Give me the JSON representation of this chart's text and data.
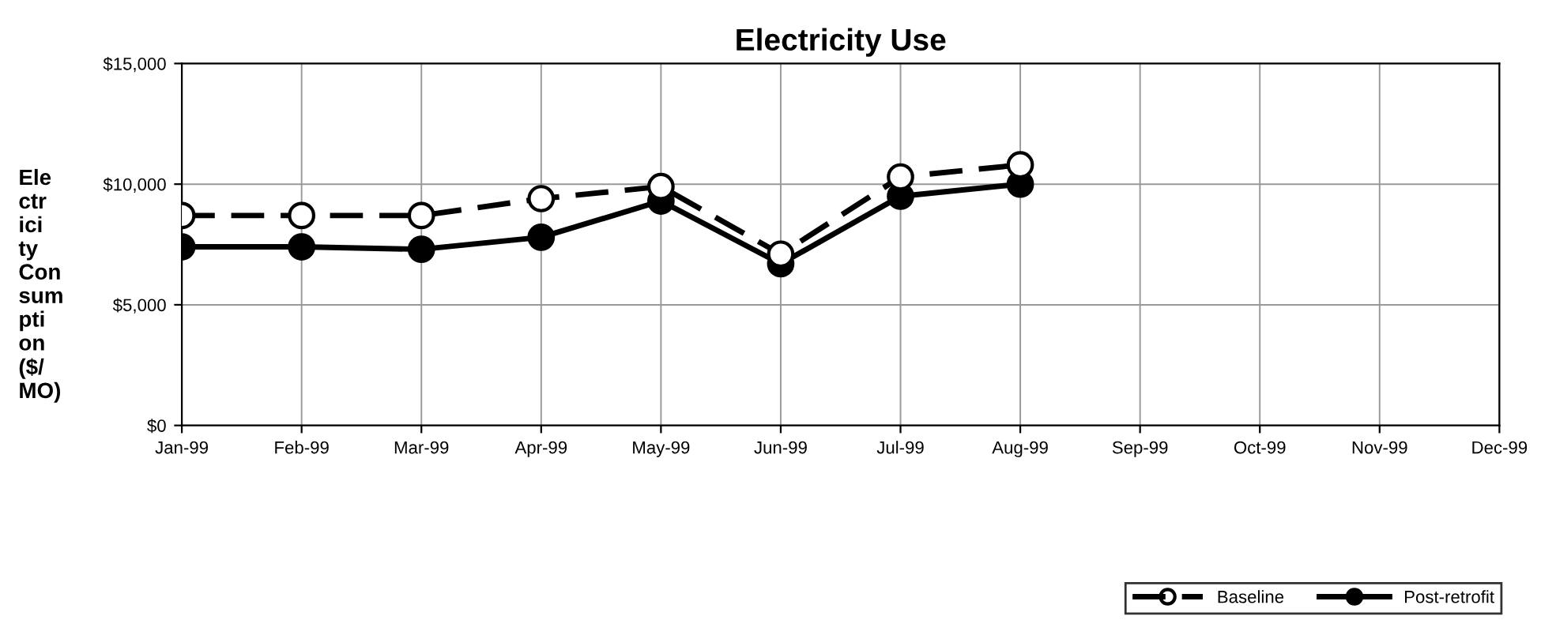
{
  "chart_data": {
    "type": "line",
    "title": "Electricity Use",
    "ylabel": "Electricity Consumption ($/MO)",
    "categories": [
      "Jan-99",
      "Feb-99",
      "Mar-99",
      "Apr-99",
      "May-99",
      "Jun-99",
      "Jul-99",
      "Aug-99",
      "Sep-99",
      "Oct-99",
      "Nov-99",
      "Dec-99"
    ],
    "series": [
      {
        "name": "Baseline",
        "color": "#000000",
        "line_style": "dashed",
        "marker": "circle",
        "values": [
          8700,
          8700,
          8700,
          9400,
          9900,
          7100,
          10300,
          10800,
          null,
          null,
          null,
          null
        ]
      },
      {
        "name": "Post-retrofit",
        "color": "#000000",
        "line_style": "solid",
        "marker": "circle",
        "values": [
          7400,
          7400,
          7300,
          7800,
          9300,
          6700,
          9500,
          10000,
          null,
          null,
          null,
          null
        ]
      }
    ],
    "ylim": [
      0,
      15000
    ],
    "yticks": [
      {
        "value": 0,
        "label": "$0"
      },
      {
        "value": 5000,
        "label": "$5,000"
      },
      {
        "value": 10000,
        "label": "$10,000"
      },
      {
        "value": 15000,
        "label": "$15,000"
      }
    ],
    "grid": true,
    "legend": "bottom right"
  }
}
